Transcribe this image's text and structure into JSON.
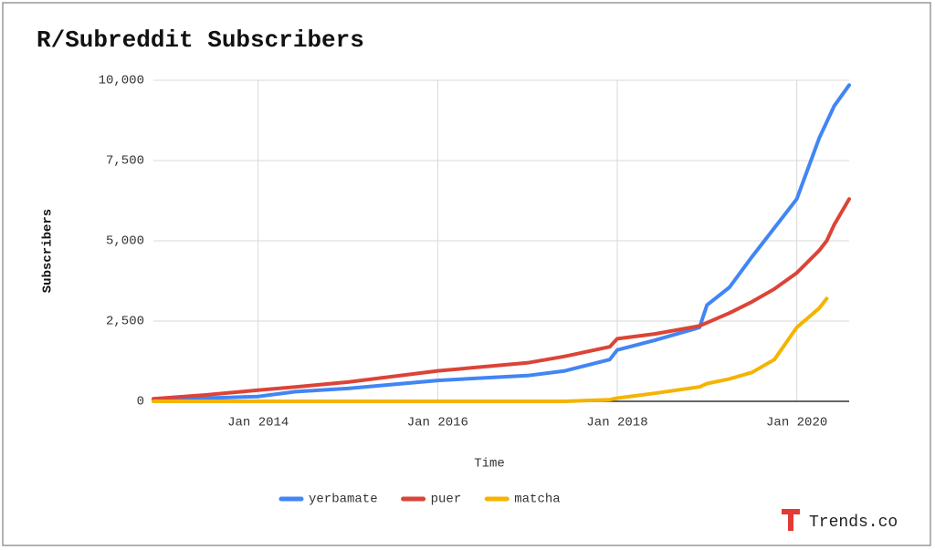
{
  "chart_data": {
    "type": "line",
    "title": "R/Subreddit Subscribers",
    "x_label": "Time",
    "y_label": "Subscribers",
    "watermark": "Trends.co",
    "x": [
      "2012-11",
      "2013-06",
      "2014-01",
      "2014-06",
      "2015-01",
      "2016-01",
      "2017-01",
      "2017-06",
      "2017-12",
      "2018-01",
      "2018-06",
      "2018-12",
      "2019-01",
      "2019-04",
      "2019-07",
      "2019-10",
      "2020-01",
      "2020-04",
      "2020-05",
      "2020-06",
      "2020-08"
    ],
    "series": [
      {
        "name": "yerbamate",
        "color": "#4285f4",
        "values": [
          50,
          100,
          150,
          300,
          400,
          650,
          800,
          950,
          1300,
          1600,
          1900,
          2300,
          3000,
          3550,
          4500,
          5400,
          6300,
          8200,
          8700,
          9200,
          9850
        ]
      },
      {
        "name": "puer",
        "color": "#db4437",
        "values": [
          80,
          200,
          350,
          450,
          600,
          950,
          1200,
          1400,
          1700,
          1950,
          2100,
          2350,
          2450,
          2750,
          3100,
          3500,
          4000,
          4700,
          5000,
          5500,
          6300
        ]
      },
      {
        "name": "matcha",
        "color": "#f4b400",
        "values": [
          0,
          0,
          0,
          0,
          0,
          0,
          0,
          0,
          50,
          100,
          250,
          450,
          550,
          700,
          900,
          1300,
          2300,
          2900,
          3200,
          null,
          null
        ]
      }
    ],
    "xlim": [
      "2012-11",
      "2020-08"
    ],
    "xticks": [
      {
        "value": "2014-01",
        "label": "Jan 2014"
      },
      {
        "value": "2016-01",
        "label": "Jan 2016"
      },
      {
        "value": "2018-01",
        "label": "Jan 2018"
      },
      {
        "value": "2020-01",
        "label": "Jan 2020"
      }
    ],
    "ylim": [
      0,
      10000
    ],
    "yticks": [
      0,
      {
        "value": 2500,
        "label": "2,500"
      },
      {
        "value": 5000,
        "label": "5,000"
      },
      {
        "value": 7500,
        "label": "7,500"
      },
      {
        "value": 10000,
        "label": "10,000"
      }
    ],
    "grid": true,
    "legend": "bottom"
  }
}
